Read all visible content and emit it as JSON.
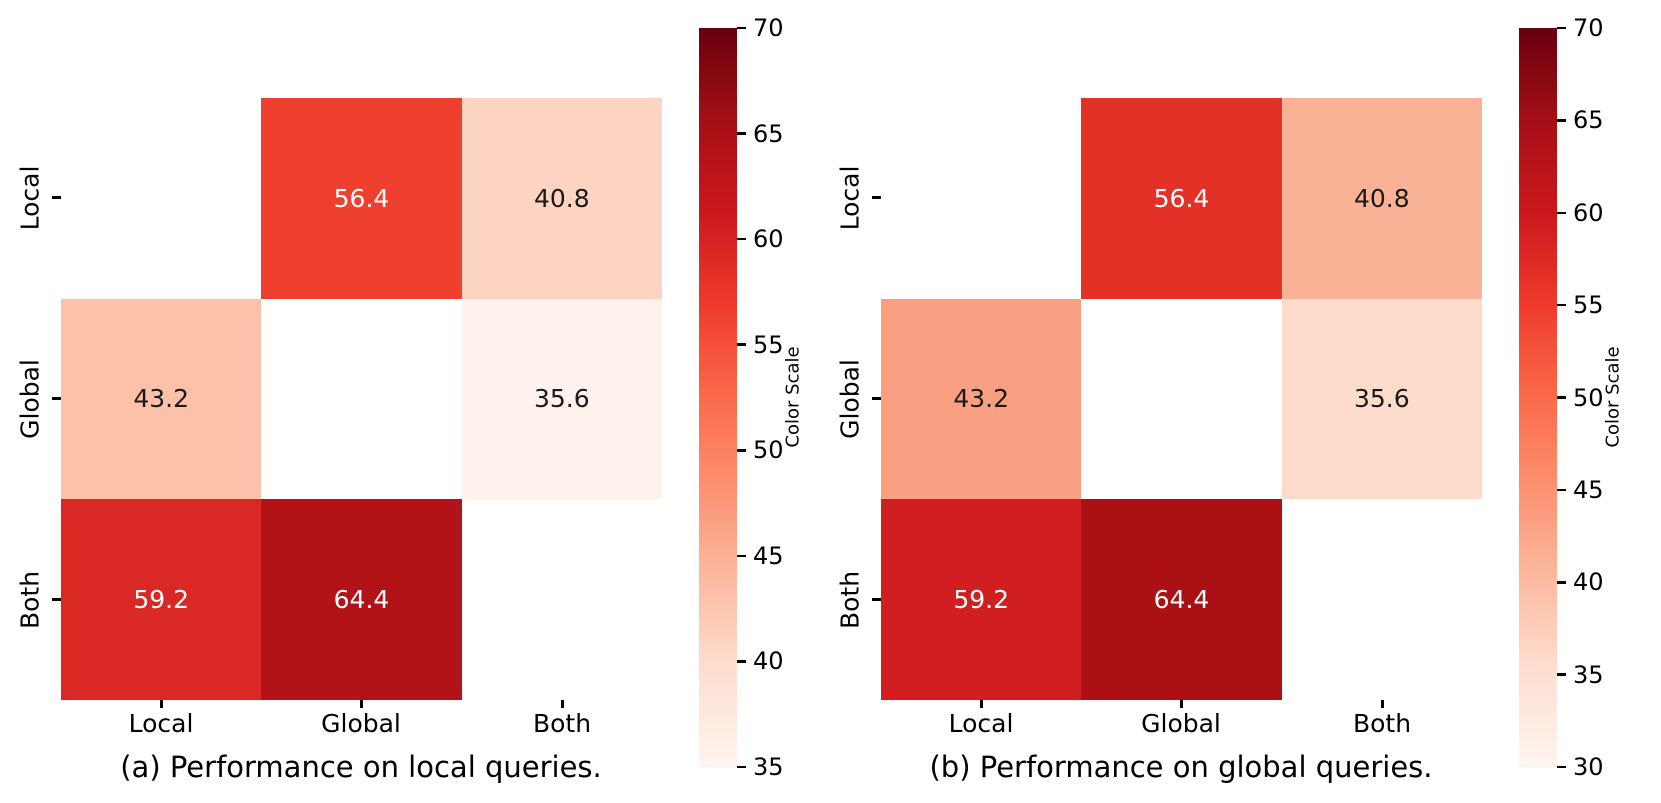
{
  "chart_data": [
    {
      "type": "heatmap",
      "caption": "(a) Performance on local queries.",
      "rows": [
        "Local",
        "Global",
        "Both"
      ],
      "columns": [
        "Local",
        "Global",
        "Both"
      ],
      "values": [
        [
          null,
          56.4,
          40.8
        ],
        [
          43.2,
          null,
          35.6
        ],
        [
          59.2,
          64.4,
          null
        ]
      ],
      "colormap": "Reds",
      "colorbar_label": "Color Scale",
      "colorbar_range": [
        35,
        70
      ],
      "colorbar_ticks": [
        70,
        65,
        60,
        55,
        50,
        45,
        40,
        35
      ],
      "cell_colors": [
        [
          null,
          "#ef402f",
          "#fdd3c2"
        ],
        [
          "#fcc1a8",
          null,
          "#fff1eb"
        ],
        [
          "#da2925",
          "#b11318",
          null
        ]
      ],
      "text_colors": [
        [
          null,
          "#ffffff",
          "#1a1a1a"
        ],
        [
          "#1a1a1a",
          null,
          "#1a1a1a"
        ],
        [
          "#ffffff",
          "#ffffff",
          null
        ]
      ]
    },
    {
      "type": "heatmap",
      "caption": "(b) Performance on global queries.",
      "rows": [
        "Local",
        "Global",
        "Both"
      ],
      "columns": [
        "Local",
        "Global",
        "Both"
      ],
      "values": [
        [
          null,
          56.4,
          40.8
        ],
        [
          43.2,
          null,
          35.6
        ],
        [
          59.2,
          64.4,
          null
        ]
      ],
      "colormap": "Reds",
      "colorbar_label": "Color Scale",
      "colorbar_range": [
        30,
        70
      ],
      "colorbar_ticks": [
        70,
        65,
        60,
        55,
        50,
        45,
        40,
        35,
        30
      ],
      "cell_colors": [
        [
          null,
          "#e43128",
          "#fbb398"
        ],
        [
          "#faa082",
          null,
          "#fddccc"
        ],
        [
          "#d11e20",
          "#ab1015",
          null
        ]
      ],
      "text_colors": [
        [
          null,
          "#ffffff",
          "#1a1a1a"
        ],
        [
          "#1a1a1a",
          null,
          "#1a1a1a"
        ],
        [
          "#ffffff",
          "#ffffff",
          null
        ]
      ]
    }
  ]
}
